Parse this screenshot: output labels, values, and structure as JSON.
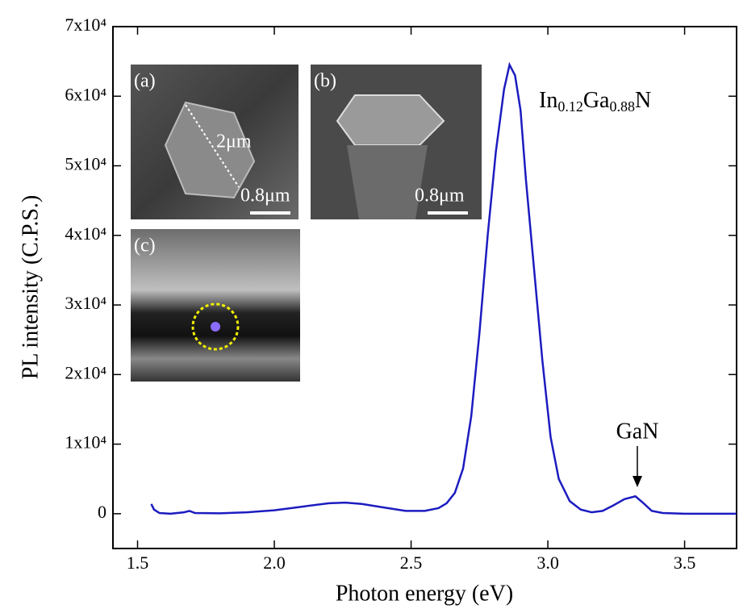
{
  "chart_data": {
    "type": "line",
    "xlabel": "Photon energy (eV)",
    "ylabel": "PL intensity (C.P.S.)",
    "xlim": [
      1.41,
      3.69
    ],
    "ylim": [
      -5000,
      70000
    ],
    "xticks": [
      1.5,
      {
        "value": 2,
        "label": "2.0"
      },
      2.5,
      {
        "value": 3,
        "label": "3.0"
      },
      3.5
    ],
    "yticks": [
      0,
      {
        "value": 10000,
        "label": "1x10⁴"
      },
      {
        "value": 20000,
        "label": "2x10⁴"
      },
      {
        "value": 30000,
        "label": "3x10⁴"
      },
      {
        "value": 40000,
        "label": "4x10⁴"
      },
      {
        "value": 50000,
        "label": "5x10⁴"
      },
      {
        "value": 60000,
        "label": "6x10⁴"
      },
      {
        "value": 70000,
        "label": "7x10⁴"
      }
    ],
    "grid": false,
    "series": [
      {
        "color": "#1c1cc0",
        "x": [
          1.55,
          1.56,
          1.58,
          1.62,
          1.67,
          1.69,
          1.71,
          1.8,
          1.9,
          2.0,
          2.1,
          2.2,
          2.26,
          2.32,
          2.4,
          2.48,
          2.55,
          2.6,
          2.63,
          2.66,
          2.69,
          2.72,
          2.75,
          2.78,
          2.81,
          2.84,
          2.86,
          2.88,
          2.9,
          2.92,
          2.95,
          2.98,
          3.01,
          3.04,
          3.08,
          3.12,
          3.16,
          3.2,
          3.24,
          3.28,
          3.32,
          3.35,
          3.38,
          3.42,
          3.5,
          3.6,
          3.69
        ],
        "values": [
          1400,
          600,
          100,
          0,
          200,
          400,
          100,
          50,
          200,
          500,
          1000,
          1500,
          1600,
          1400,
          900,
          400,
          400,
          800,
          1500,
          3000,
          6500,
          14000,
          26000,
          40000,
          52000,
          61000,
          64500,
          63000,
          58000,
          48000,
          35000,
          22000,
          11000,
          5000,
          1800,
          600,
          200,
          400,
          1200,
          2100,
          2500,
          1500,
          400,
          100,
          0,
          0,
          0
        ]
      }
    ],
    "annotations": {
      "panel_a": "(a)",
      "panel_b": "(b)",
      "panel_c": "(c)",
      "dimension": "2μm",
      "scale_a": "0.8μm",
      "scale_b": "0.8μm",
      "compound": [
        "In",
        "0.12",
        "Ga",
        "0.88",
        "N"
      ],
      "peak": "GaN"
    }
  }
}
